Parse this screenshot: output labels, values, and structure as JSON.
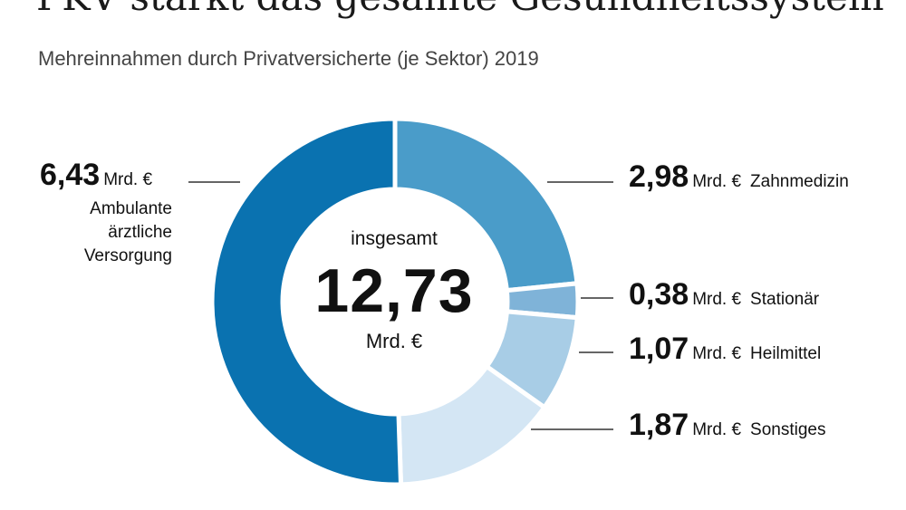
{
  "title": "PKV stärkt das gesamte Gesundheitssystem",
  "subtitle": "Mehreinnahmen durch Privatversicherte (je Sektor) 2019",
  "center": {
    "caption": "insgesamt",
    "total": "12,73",
    "unit": "Mrd. €"
  },
  "chart_data": {
    "type": "pie",
    "donut": true,
    "unit": "Mrd. €",
    "total": 12.73,
    "slices": [
      {
        "name": "Zahnmedizin",
        "value": 2.98,
        "label": "2,98",
        "color": "#4a9cc9"
      },
      {
        "name": "Stationär",
        "value": 0.38,
        "label": "0,38",
        "color": "#7fb3d8"
      },
      {
        "name": "Heilmittel",
        "value": 1.07,
        "label": "1,07",
        "color": "#a8cde6"
      },
      {
        "name": "Sonstiges",
        "value": 1.87,
        "label": "1,87",
        "color": "#d4e6f4"
      },
      {
        "name": "Ambulante ärztliche Versorgung",
        "value": 6.43,
        "label": "6,43",
        "color": "#0a72b0"
      }
    ]
  },
  "labels": {
    "ambulant_lines": [
      "Ambulante",
      "ärztliche",
      "Versorgung"
    ]
  }
}
